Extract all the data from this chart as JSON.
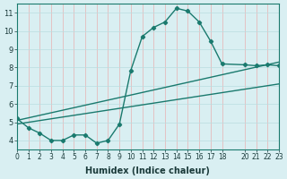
{
  "xlabel": "Humidex (Indice chaleur)",
  "bg_color": "#d9eff2",
  "line_color": "#1a7a6e",
  "xlim": [
    0,
    23
  ],
  "ylim": [
    3.5,
    11.5
  ],
  "xticks": [
    0,
    1,
    2,
    3,
    4,
    5,
    6,
    7,
    8,
    9,
    10,
    11,
    12,
    13,
    14,
    15,
    16,
    17,
    18,
    20,
    21,
    22,
    23
  ],
  "yticks": [
    4,
    5,
    6,
    7,
    8,
    9,
    10,
    11
  ],
  "curve_x": [
    0,
    1,
    2,
    3,
    4,
    5,
    6,
    7,
    8,
    9,
    10,
    11,
    12,
    13,
    14,
    15,
    16,
    17,
    18,
    20,
    21,
    22,
    23
  ],
  "curve_y": [
    5.2,
    4.7,
    4.4,
    4.0,
    4.0,
    4.3,
    4.3,
    3.85,
    4.0,
    4.9,
    7.85,
    9.7,
    10.2,
    10.5,
    11.25,
    11.1,
    10.5,
    9.45,
    8.2,
    8.15,
    8.1,
    8.15,
    8.1
  ],
  "line1_x": [
    0,
    23
  ],
  "line1_y": [
    5.1,
    8.3
  ],
  "line2_x": [
    0,
    23
  ],
  "line2_y": [
    4.9,
    7.1
  ]
}
